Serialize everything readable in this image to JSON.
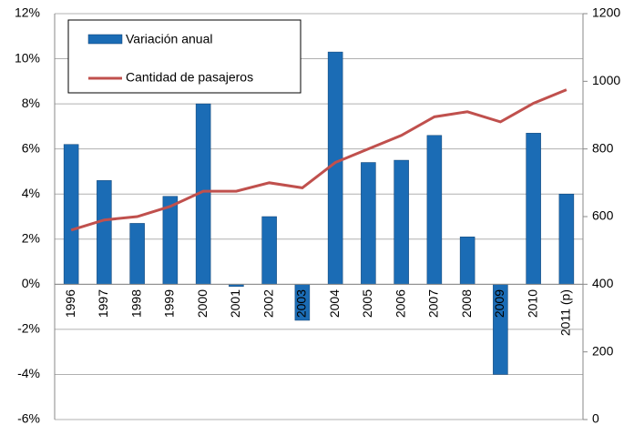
{
  "chart_data": {
    "type": "bar-line",
    "categories": [
      "1996",
      "1997",
      "1998",
      "1999",
      "2000",
      "2001",
      "2002",
      "2003",
      "2004",
      "2005",
      "2006",
      "2007",
      "2008",
      "2009",
      "2010",
      "2011 (p)"
    ],
    "series": [
      {
        "name": "Variación anual",
        "type": "bar",
        "color": "#1b6cb5",
        "values": [
          6.2,
          4.6,
          2.7,
          3.9,
          8.0,
          -0.1,
          3.0,
          -1.6,
          10.3,
          5.4,
          5.5,
          6.6,
          2.1,
          -4.0,
          6.7,
          4.0
        ]
      },
      {
        "name": "Cantidad de pasajeros",
        "type": "line",
        "axis": "y2",
        "color": "#c0504d",
        "values": [
          560,
          590,
          600,
          630,
          675,
          675,
          700,
          685,
          760,
          800,
          840,
          895,
          910,
          880,
          935,
          975
        ]
      }
    ],
    "ylim": [
      -6,
      12
    ],
    "yticks": [
      {
        "value": -6,
        "label": "-6%"
      },
      {
        "value": -4,
        "label": "-4%"
      },
      {
        "value": -2,
        "label": "-2%"
      },
      {
        "value": 0,
        "label": "0%"
      },
      {
        "value": 2,
        "label": "2%"
      },
      {
        "value": 4,
        "label": "4%"
      },
      {
        "value": 6,
        "label": "6%"
      },
      {
        "value": 8,
        "label": "8%"
      },
      {
        "value": 10,
        "label": "10%"
      },
      {
        "value": 12,
        "label": "12%"
      }
    ],
    "y2lim": [
      0,
      1200
    ],
    "y2ticks": [
      0,
      200,
      400,
      600,
      800,
      1000,
      1200
    ],
    "grid": true,
    "legend": "top-left"
  }
}
